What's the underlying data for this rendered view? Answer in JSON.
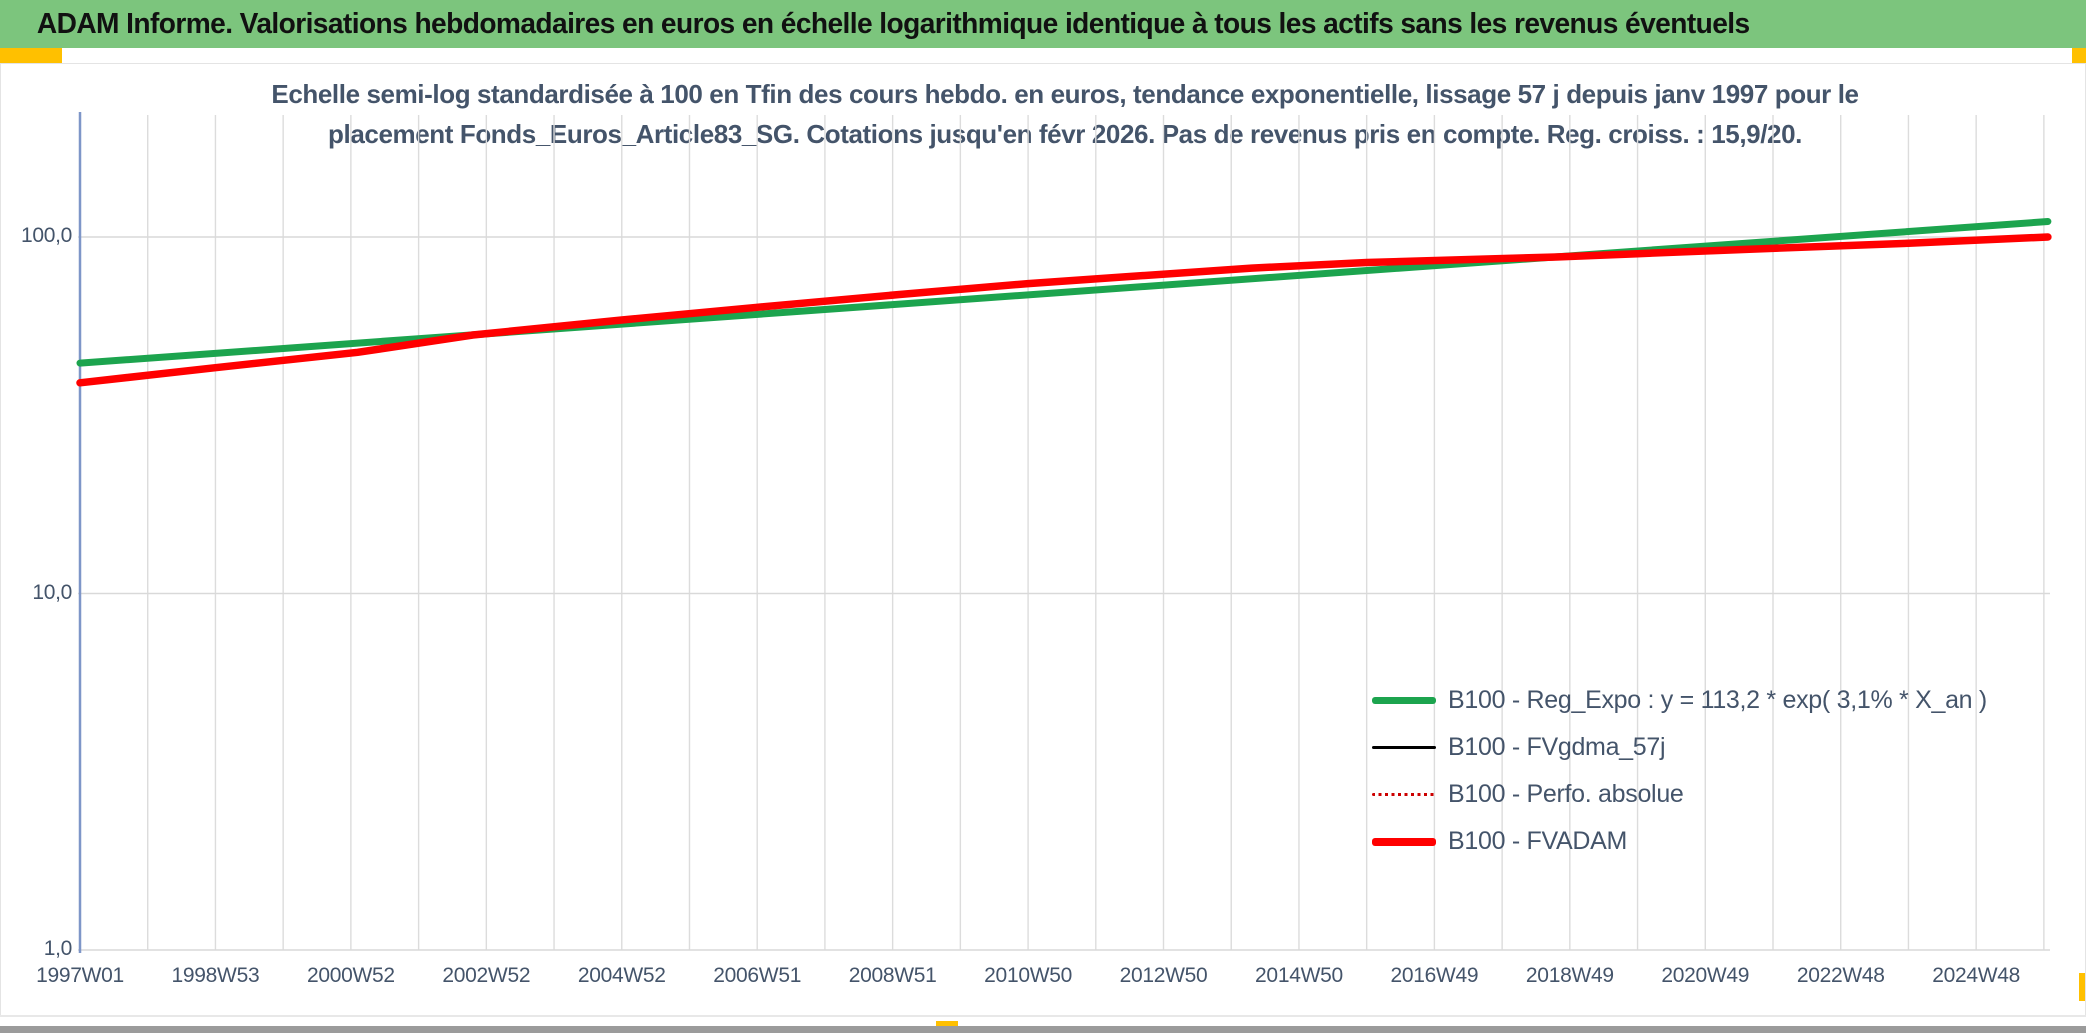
{
  "banner": {
    "title": "ADAM Informe. Valorisations hebdomadaires en euros en échelle logarithmique identique à tous les actifs sans les revenus éventuels",
    "bg_color": "#7cc57d",
    "text_color": "#111111",
    "marker_color": "#FFC000"
  },
  "subtitle": {
    "line1": "Echelle semi-log standardisée à 100 en Tfin des cours hebdo. en euros, tendance exponentielle, lissage 57 j depuis janv 1997 pour le",
    "line2": "placement Fonds_Euros_Article83_SG. Cotations jusqu'en févr 2026. Pas de revenus pris en compte. Reg. croiss. : 15,9/20."
  },
  "chart_data": {
    "type": "line",
    "y_scale": "log10",
    "title": "",
    "xlabel": "",
    "ylabel": "",
    "ylim": [
      1,
      220
    ],
    "x_range_years": [
      1997.0,
      2026.1
    ],
    "grid": "yearly vertical, decade horizontal",
    "legend_position": "inside bottom-right",
    "y_ticks": [
      {
        "label": "100,0",
        "value": 100
      },
      {
        "label": "10,0",
        "value": 10
      },
      {
        "label": "1,0",
        "value": 1
      }
    ],
    "x_tick_labels": [
      "1997W01",
      "1998W53",
      "2000W52",
      "2002W52",
      "2004W52",
      "2006W51",
      "2008W51",
      "2010W50",
      "2012W50",
      "2014W50",
      "2016W49",
      "2018W49",
      "2020W49",
      "2022W48",
      "2024W48"
    ],
    "x_tick_year_step": 2,
    "series": [
      {
        "name": "B100 - Reg_Expo : y = 113,2 * exp( 3,1% *  X_an )",
        "color": "#1CA44E",
        "width": 7,
        "style": "solid",
        "points": [
          [
            1997.0,
            44.3
          ],
          [
            2026.06,
            110.5
          ]
        ]
      },
      {
        "name": "B100 - FVgdma_57j",
        "color": "#000000",
        "width": 2.5,
        "style": "solid",
        "coincides_with": "B100 - FVADAM",
        "points": [
          [
            1997.0,
            39.0
          ],
          [
            1999.0,
            43.0
          ],
          [
            2001.1,
            47.5
          ],
          [
            2002.8,
            53.1
          ],
          [
            2005.0,
            58.5
          ],
          [
            2007.0,
            63.5
          ],
          [
            2009.1,
            69.0
          ],
          [
            2011.0,
            74.0
          ],
          [
            2012.5,
            77.5
          ],
          [
            2014.3,
            81.8
          ],
          [
            2016.0,
            84.8
          ],
          [
            2018.8,
            87.9
          ],
          [
            2020.0,
            89.8
          ],
          [
            2021.7,
            92.5
          ],
          [
            2024.0,
            96.0
          ],
          [
            2026.06,
            100.0
          ]
        ]
      },
      {
        "name": "B100 - Perfo. absolue",
        "color": "#CC0000",
        "width": 2.5,
        "style": "dotted",
        "coincides_with": "B100 - FVADAM",
        "points": [
          [
            1997.0,
            39.0
          ],
          [
            1999.0,
            43.0
          ],
          [
            2001.1,
            47.5
          ],
          [
            2002.8,
            53.1
          ],
          [
            2005.0,
            58.5
          ],
          [
            2007.0,
            63.5
          ],
          [
            2009.1,
            69.0
          ],
          [
            2011.0,
            74.0
          ],
          [
            2012.5,
            77.5
          ],
          [
            2014.3,
            81.8
          ],
          [
            2016.0,
            84.8
          ],
          [
            2018.8,
            87.9
          ],
          [
            2020.0,
            89.8
          ],
          [
            2021.7,
            92.5
          ],
          [
            2024.0,
            96.0
          ],
          [
            2026.06,
            100.0
          ]
        ]
      },
      {
        "name": "B100 - FVADAM",
        "color": "#FF0000",
        "width": 7.5,
        "style": "solid",
        "points": [
          [
            1997.0,
            39.0
          ],
          [
            1999.0,
            43.0
          ],
          [
            2001.1,
            47.5
          ],
          [
            2002.8,
            53.1
          ],
          [
            2005.0,
            58.5
          ],
          [
            2007.0,
            63.5
          ],
          [
            2009.1,
            69.0
          ],
          [
            2011.0,
            74.0
          ],
          [
            2012.5,
            77.5
          ],
          [
            2014.3,
            81.8
          ],
          [
            2016.0,
            84.8
          ],
          [
            2018.8,
            87.9
          ],
          [
            2020.0,
            89.8
          ],
          [
            2021.7,
            92.5
          ],
          [
            2024.0,
            96.0
          ],
          [
            2026.06,
            100.0
          ]
        ]
      }
    ]
  },
  "legend": {
    "items": [
      {
        "label": "B100 - Reg_Expo : y = 113,2 * exp( 3,1% *  X_an )",
        "swatch_color": "#1CA44E",
        "swatch_thickness": 7,
        "swatch_style": "solid"
      },
      {
        "label": "B100 - FVgdma_57j",
        "swatch_color": "#000000",
        "swatch_thickness": 3,
        "swatch_style": "solid"
      },
      {
        "label": "B100 - Perfo. absolue",
        "swatch_color": "#CC0000",
        "swatch_thickness": 3,
        "swatch_style": "dotted"
      },
      {
        "label": "B100 - FVADAM",
        "swatch_color": "#FF0000",
        "swatch_thickness": 8,
        "swatch_style": "solid"
      }
    ]
  },
  "colors": {
    "gridline": "#DCDCDC",
    "decade_gridline": "#D9D9D9",
    "y_axis_line": "#7E96C8",
    "axis_text": "#44546A"
  }
}
